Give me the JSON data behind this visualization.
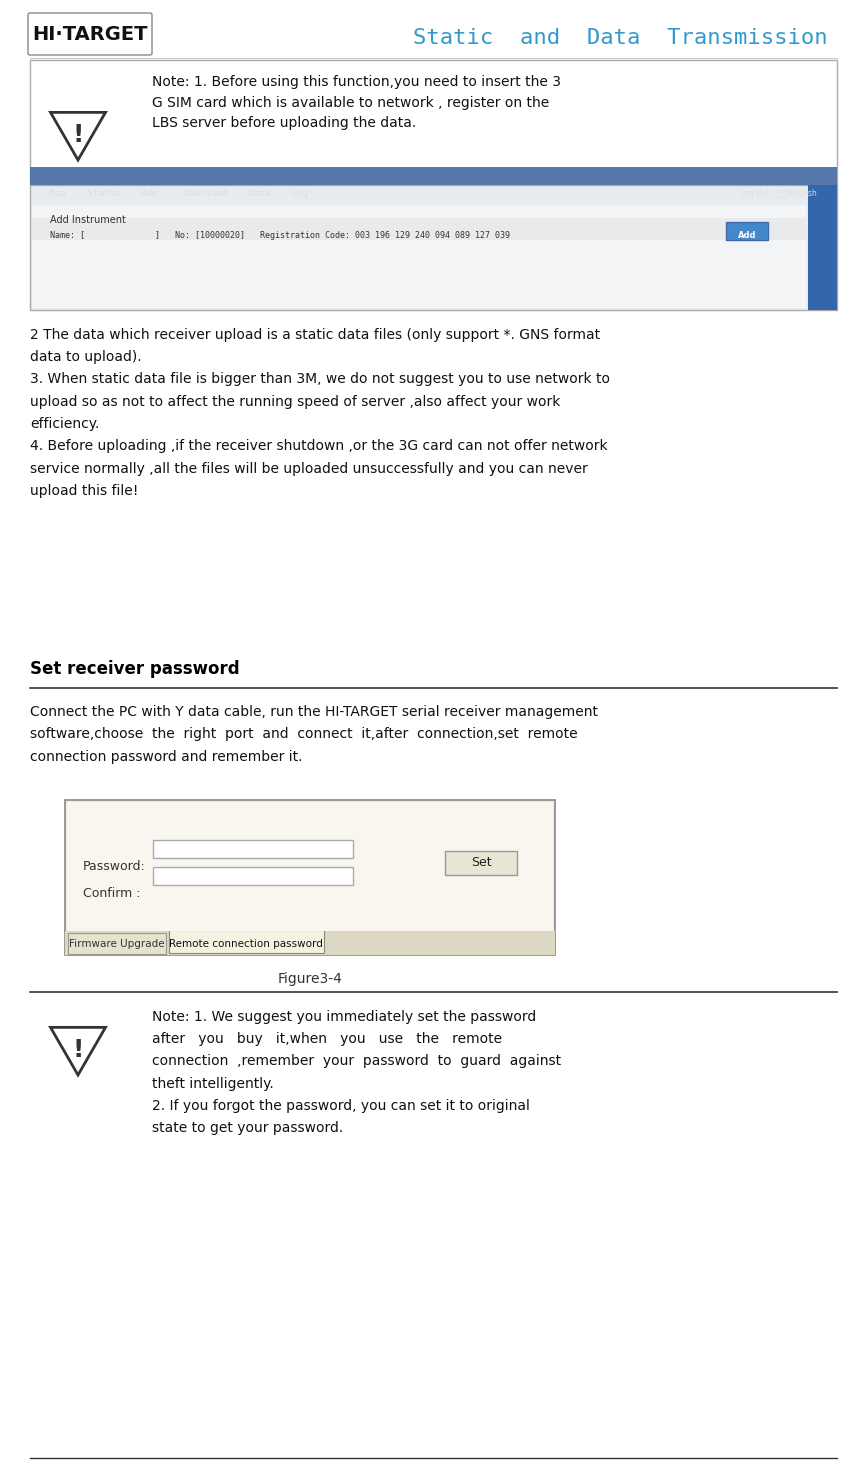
{
  "title": "Static  and  Data  Transmission",
  "title_color": "#3399CC",
  "bg_color": "#ffffff",
  "header_logo_text": "HI·TARGET",
  "note1_text": "Note: 1. Before using this function,you need to insert the 3\nG SIM card which is available to network , register on the\nLBS server before uploading the data.",
  "body_text1": "2 The data which receiver upload is a static data files (only support *. GNS format\ndata to upload).\n3. When static data file is bigger than 3M, we do not suggest you to use network to\nupload so as not to affect the running speed of server ,also affect your work\nefficiency.\n4. Before uploading ,if the receiver shutdown ,or the 3G card can not offer network\nservice normally ,all the files will be uploaded unsuccessfully and you can never\nupload this file!",
  "section_title": "Set receiver password",
  "section_body": "Connect the PC with Y data cable, run the HI-TARGET serial receiver management\nsoftware,choose  the  right  port  and  connect  it,after  connection,set  remote\nconnection password and remember it.",
  "figure_caption": "Figure3-4",
  "note2_text": "Note: 1. We suggest you immediately set the password\nafter   you   buy   it,when   you   use   the   remote\nconnection  ,remember  your  password  to  guard  against\ntheft intelligently.\n2. If you forgot the password, you can set it to original\nstate to get your password.",
  "line_color": "#000000",
  "text_color": "#000000",
  "warning_triangle_color": "#000000",
  "section_title_size": 11,
  "body_text_size": 10,
  "note_text_size": 10
}
